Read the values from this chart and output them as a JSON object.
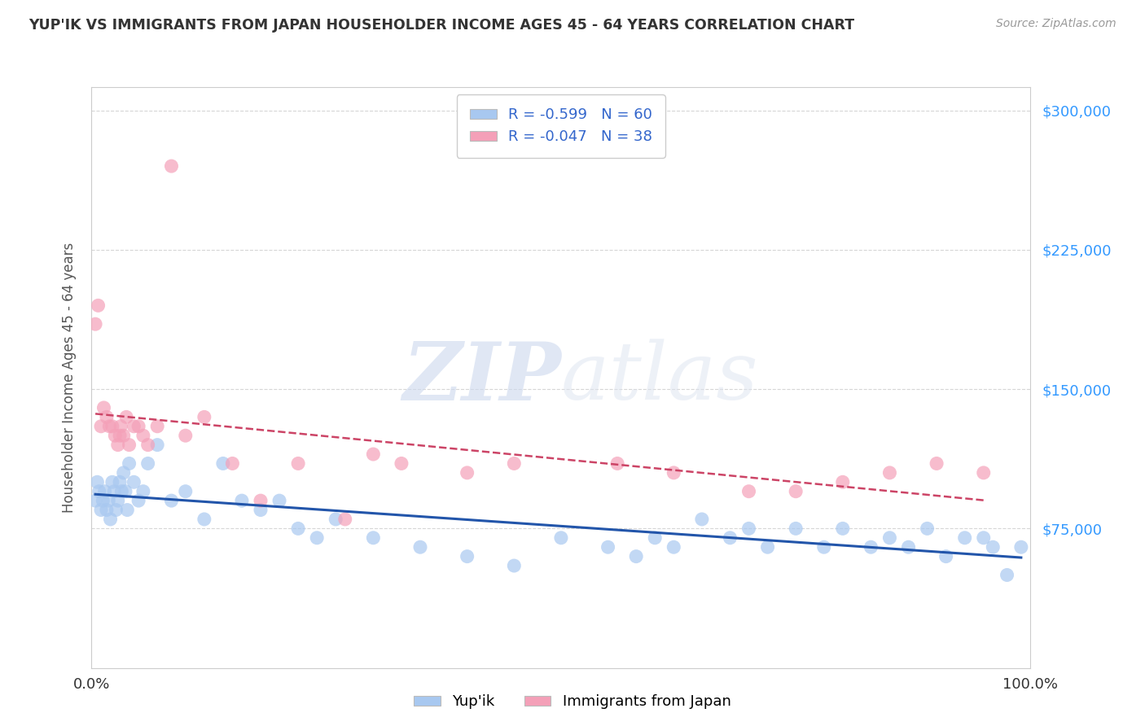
{
  "title": "YUP'IK VS IMMIGRANTS FROM JAPAN HOUSEHOLDER INCOME AGES 45 - 64 YEARS CORRELATION CHART",
  "source": "Source: ZipAtlas.com",
  "ylabel": "Householder Income Ages 45 - 64 years",
  "series1_name": "Yup'ik",
  "series2_name": "Immigrants from Japan",
  "series1_color": "#a8c8f0",
  "series2_color": "#f4a0b8",
  "series1_line_color": "#2255aa",
  "series2_line_color": "#cc4466",
  "R1": -0.599,
  "N1": 60,
  "R2": -0.047,
  "N2": 38,
  "xlim": [
    0,
    100
  ],
  "ylim": [
    0,
    312500
  ],
  "yticks": [
    0,
    75000,
    150000,
    225000,
    300000
  ],
  "ytick_labels": [
    "",
    "$75,000",
    "$150,000",
    "$225,000",
    "$300,000"
  ],
  "watermark_zip": "ZIP",
  "watermark_atlas": "atlas",
  "background_color": "#ffffff",
  "series1_x": [
    0.4,
    0.6,
    0.8,
    1.0,
    1.2,
    1.4,
    1.6,
    1.8,
    2.0,
    2.2,
    2.4,
    2.6,
    2.8,
    3.0,
    3.2,
    3.4,
    3.6,
    3.8,
    4.0,
    4.5,
    5.0,
    5.5,
    6.0,
    7.0,
    8.5,
    10.0,
    12.0,
    14.0,
    16.0,
    18.0,
    20.0,
    22.0,
    24.0,
    26.0,
    30.0,
    35.0,
    40.0,
    45.0,
    50.0,
    55.0,
    58.0,
    60.0,
    62.0,
    65.0,
    68.0,
    70.0,
    72.0,
    75.0,
    78.0,
    80.0,
    83.0,
    85.0,
    87.0,
    89.0,
    91.0,
    93.0,
    95.0,
    96.0,
    97.5,
    99.0
  ],
  "series1_y": [
    90000,
    100000,
    95000,
    85000,
    90000,
    95000,
    85000,
    90000,
    80000,
    100000,
    95000,
    85000,
    90000,
    100000,
    95000,
    105000,
    95000,
    85000,
    110000,
    100000,
    90000,
    95000,
    110000,
    120000,
    90000,
    95000,
    80000,
    110000,
    90000,
    85000,
    90000,
    75000,
    70000,
    80000,
    70000,
    65000,
    60000,
    55000,
    70000,
    65000,
    60000,
    70000,
    65000,
    80000,
    70000,
    75000,
    65000,
    75000,
    65000,
    75000,
    65000,
    70000,
    65000,
    75000,
    60000,
    70000,
    70000,
    65000,
    50000,
    65000
  ],
  "series2_x": [
    0.4,
    0.7,
    1.0,
    1.3,
    1.6,
    1.9,
    2.2,
    2.5,
    2.8,
    3.1,
    3.4,
    3.7,
    4.0,
    4.5,
    5.0,
    6.0,
    7.0,
    8.5,
    10.0,
    12.0,
    15.0,
    18.0,
    22.0,
    27.0,
    33.0,
    40.0,
    56.0,
    62.0,
    70.0,
    75.0,
    80.0,
    85.0,
    90.0,
    95.0,
    30.0,
    45.0,
    5.5,
    3.0
  ],
  "series2_y": [
    185000,
    195000,
    130000,
    140000,
    135000,
    130000,
    130000,
    125000,
    120000,
    130000,
    125000,
    135000,
    120000,
    130000,
    130000,
    120000,
    130000,
    270000,
    125000,
    135000,
    110000,
    90000,
    110000,
    80000,
    110000,
    105000,
    110000,
    105000,
    95000,
    95000,
    100000,
    105000,
    110000,
    105000,
    115000,
    110000,
    125000,
    125000
  ]
}
